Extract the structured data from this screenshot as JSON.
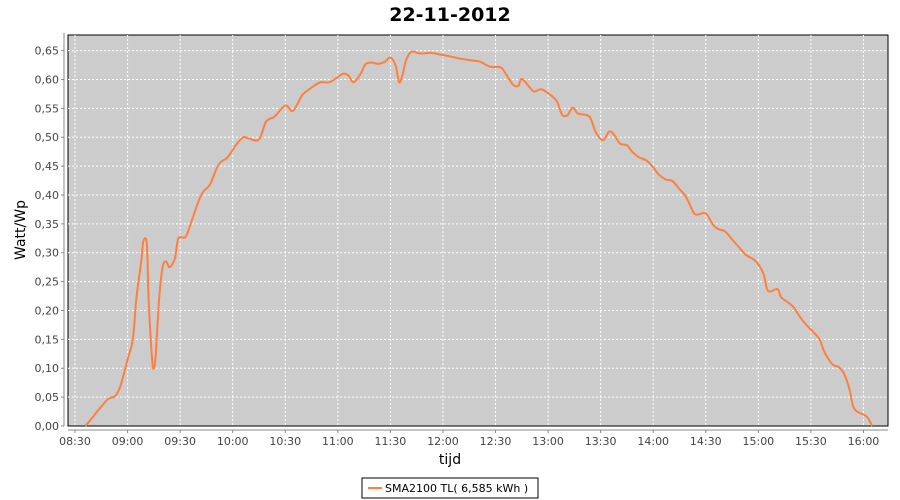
{
  "chart_data": {
    "type": "line",
    "title": "22-11-2012",
    "xlabel": "tijd",
    "ylabel": "Watt/Wp",
    "xlim": [
      "08:26",
      "16:14"
    ],
    "ylim": [
      0,
      0.677
    ],
    "grid": true,
    "legend_position": "bottom",
    "background_color": "#cccccc",
    "x_ticks": [
      "08:30",
      "09:00",
      "09:30",
      "10:00",
      "10:30",
      "11:00",
      "11:30",
      "12:00",
      "12:30",
      "13:00",
      "13:30",
      "14:00",
      "14:30",
      "15:00",
      "15:30",
      "16:00"
    ],
    "y_ticks": [
      "0,00",
      "0,05",
      "0,10",
      "0,15",
      "0,20",
      "0,25",
      "0,30",
      "0,35",
      "0,40",
      "0,45",
      "0,50",
      "0,55",
      "0,60",
      "0,65"
    ],
    "series": [
      {
        "name": "SMA2100 TL( 6,585 kWh )",
        "color": "#ff7f3f",
        "points": [
          [
            "08:36",
            0.0
          ],
          [
            "08:40",
            0.015
          ],
          [
            "08:44",
            0.03
          ],
          [
            "08:49",
            0.047
          ],
          [
            "08:53",
            0.052
          ],
          [
            "08:56",
            0.07
          ],
          [
            "09:00",
            0.115
          ],
          [
            "09:03",
            0.15
          ],
          [
            "09:05",
            0.22
          ],
          [
            "09:08",
            0.29
          ],
          [
            "09:09",
            0.32
          ],
          [
            "09:11",
            0.315
          ],
          [
            "09:12",
            0.22
          ],
          [
            "09:14",
            0.115
          ],
          [
            "09:15",
            0.1
          ],
          [
            "09:16",
            0.12
          ],
          [
            "09:18",
            0.22
          ],
          [
            "09:20",
            0.275
          ],
          [
            "09:22",
            0.285
          ],
          [
            "09:24",
            0.275
          ],
          [
            "09:27",
            0.29
          ],
          [
            "09:29",
            0.325
          ],
          [
            "09:33",
            0.327
          ],
          [
            "09:36",
            0.35
          ],
          [
            "09:40",
            0.385
          ],
          [
            "09:43",
            0.405
          ],
          [
            "09:47",
            0.418
          ],
          [
            "09:52",
            0.453
          ],
          [
            "09:57",
            0.465
          ],
          [
            "10:02",
            0.487
          ],
          [
            "10:06",
            0.5
          ],
          [
            "10:09",
            0.498
          ],
          [
            "10:15",
            0.496
          ],
          [
            "10:19",
            0.527
          ],
          [
            "10:24",
            0.536
          ],
          [
            "10:30",
            0.555
          ],
          [
            "10:34",
            0.545
          ],
          [
            "10:37",
            0.558
          ],
          [
            "10:40",
            0.574
          ],
          [
            "10:45",
            0.586
          ],
          [
            "10:50",
            0.595
          ],
          [
            "10:55",
            0.595
          ],
          [
            "10:59",
            0.602
          ],
          [
            "11:03",
            0.61
          ],
          [
            "11:06",
            0.607
          ],
          [
            "11:09",
            0.595
          ],
          [
            "11:13",
            0.61
          ],
          [
            "11:16",
            0.627
          ],
          [
            "11:20",
            0.629
          ],
          [
            "11:23",
            0.627
          ],
          [
            "11:27",
            0.631
          ],
          [
            "11:30",
            0.638
          ],
          [
            "11:33",
            0.624
          ],
          [
            "11:35",
            0.595
          ],
          [
            "11:37",
            0.609
          ],
          [
            "11:39",
            0.634
          ],
          [
            "11:42",
            0.648
          ],
          [
            "11:47",
            0.645
          ],
          [
            "11:53",
            0.646
          ],
          [
            "11:59",
            0.643
          ],
          [
            "12:04",
            0.64
          ],
          [
            "12:10",
            0.636
          ],
          [
            "12:16",
            0.633
          ],
          [
            "12:21",
            0.631
          ],
          [
            "12:27",
            0.622
          ],
          [
            "12:33",
            0.621
          ],
          [
            "12:36",
            0.609
          ],
          [
            "12:40",
            0.591
          ],
          [
            "12:43",
            0.589
          ],
          [
            "12:45",
            0.601
          ],
          [
            "12:49",
            0.588
          ],
          [
            "12:52",
            0.579
          ],
          [
            "12:56",
            0.583
          ],
          [
            "13:01",
            0.574
          ],
          [
            "13:05",
            0.562
          ],
          [
            "13:08",
            0.539
          ],
          [
            "13:11",
            0.538
          ],
          [
            "13:14",
            0.551
          ],
          [
            "13:17",
            0.541
          ],
          [
            "13:21",
            0.539
          ],
          [
            "13:24",
            0.534
          ],
          [
            "13:27",
            0.51
          ],
          [
            "13:30",
            0.497
          ],
          [
            "13:32",
            0.496
          ],
          [
            "13:35",
            0.51
          ],
          [
            "13:38",
            0.503
          ],
          [
            "13:41",
            0.489
          ],
          [
            "13:45",
            0.486
          ],
          [
            "13:48",
            0.475
          ],
          [
            "13:52",
            0.465
          ],
          [
            "13:56",
            0.46
          ],
          [
            "14:00",
            0.448
          ],
          [
            "14:03",
            0.436
          ],
          [
            "14:07",
            0.427
          ],
          [
            "14:11",
            0.424
          ],
          [
            "14:15",
            0.41
          ],
          [
            "14:18",
            0.4
          ],
          [
            "14:20",
            0.389
          ],
          [
            "14:23",
            0.37
          ],
          [
            "14:25",
            0.366
          ],
          [
            "14:30",
            0.368
          ],
          [
            "14:34",
            0.349
          ],
          [
            "14:37",
            0.341
          ],
          [
            "14:41",
            0.337
          ],
          [
            "14:45",
            0.323
          ],
          [
            "14:50",
            0.306
          ],
          [
            "14:53",
            0.296
          ],
          [
            "14:57",
            0.289
          ],
          [
            "15:00",
            0.28
          ],
          [
            "15:03",
            0.263
          ],
          [
            "15:05",
            0.237
          ],
          [
            "15:07",
            0.233
          ],
          [
            "15:11",
            0.237
          ],
          [
            "15:13",
            0.223
          ],
          [
            "15:17",
            0.214
          ],
          [
            "15:20",
            0.206
          ],
          [
            "15:24",
            0.188
          ],
          [
            "15:28",
            0.173
          ],
          [
            "15:31",
            0.164
          ],
          [
            "15:35",
            0.15
          ],
          [
            "15:37",
            0.133
          ],
          [
            "15:40",
            0.116
          ],
          [
            "15:43",
            0.105
          ],
          [
            "15:46",
            0.102
          ],
          [
            "15:49",
            0.09
          ],
          [
            "15:52",
            0.064
          ],
          [
            "15:54",
            0.035
          ],
          [
            "15:56",
            0.026
          ],
          [
            "15:59",
            0.021
          ],
          [
            "16:02",
            0.016
          ],
          [
            "16:05",
            0.0
          ]
        ]
      }
    ]
  }
}
